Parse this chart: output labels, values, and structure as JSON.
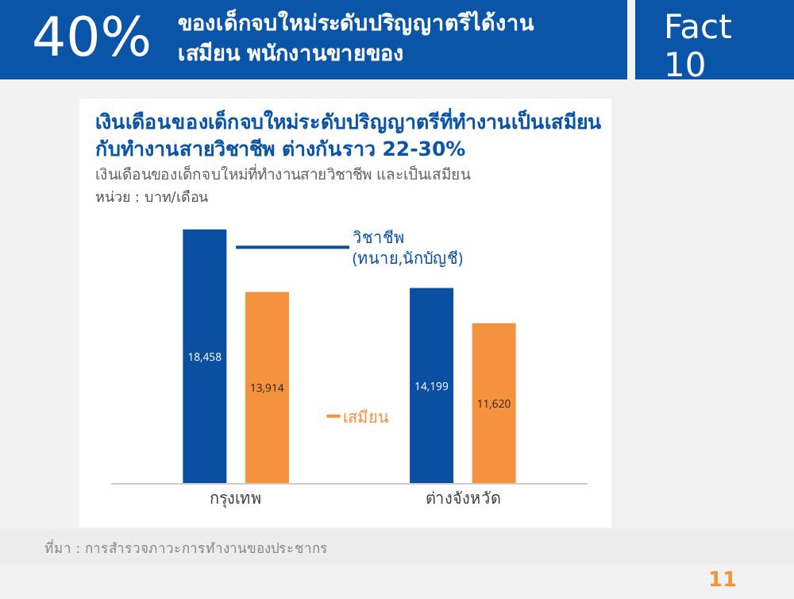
{
  "chart_data": {
    "type": "bar",
    "title": "เงินเดือนของเด็กจบใหม่ระดับปริญญาตรีที่ทำงานเป็นเสมียน กับทำงานสายวิชาชีพ ต่างกันราว 22-30%",
    "subtitle": "เงินเดือนของเด็กจบใหม่ที่ทำงานสายวิชาชีพ และเป็นเสมียน",
    "annotations": [
      "40%",
      "ของเด็กจบใหม่ระดับปริญญาตรีได้งาน เสมียน พนักงานขายของ",
      "Fact 10",
      "หน่วย : บาท/เดือน",
      "ที่มา : การสำรวจภาวะการทำงานของประชากร",
      "11"
    ],
    "categories": [
      "กรุงเทพ",
      "ต่างจังหวัด"
    ],
    "series": [
      {
        "name": "วิชาชีพ (ทนาย,นักบัญชี)",
        "color": "#0b4fa0",
        "values": [
          18458,
          14199
        ],
        "value_labels": [
          "18,458",
          "14,199"
        ]
      },
      {
        "name": "เสมียน",
        "color": "#f5923e",
        "values": [
          13914,
          11620
        ],
        "value_labels": [
          "13,914",
          "11,620"
        ]
      }
    ]
  }
}
